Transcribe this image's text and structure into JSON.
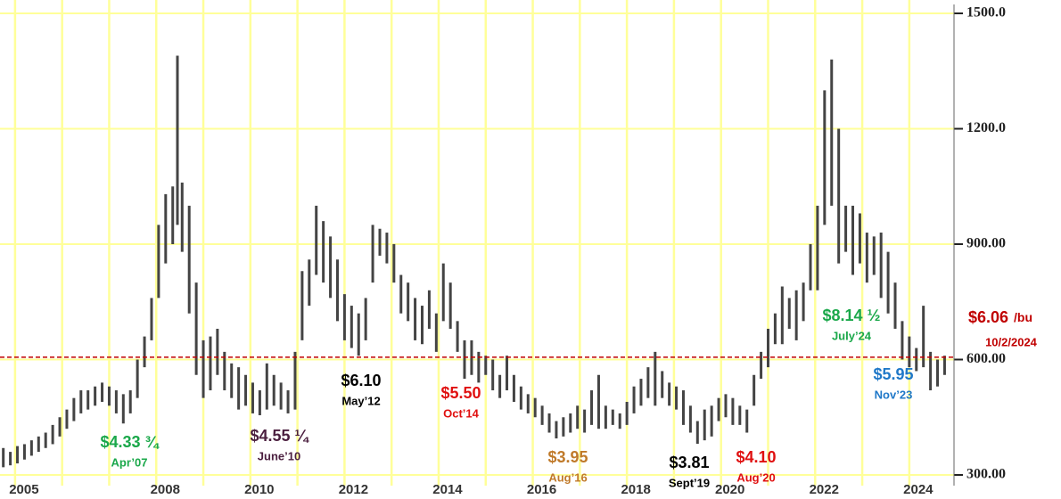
{
  "chart_data": {
    "type": "hilo",
    "color": "#444444",
    "grid_color": "#ffff99",
    "xlim": [
      2004.68,
      2024.95
    ],
    "ylim": [
      300,
      1500
    ],
    "yticks": [
      {
        "value": 300,
        "label": "300.00"
      },
      {
        "value": 600,
        "label": "600.00"
      },
      {
        "value": 900,
        "label": "900.00"
      },
      {
        "value": 1200,
        "label": "1200.0"
      },
      {
        "value": 1500,
        "label": "1500.0"
      }
    ],
    "xticks": [
      2005,
      2008,
      2010,
      2012,
      2014,
      2016,
      2018,
      2020,
      2022,
      2024
    ],
    "xgrid": [
      2005,
      2006,
      2007,
      2008,
      2009,
      2010,
      2011,
      2012,
      2013,
      2014,
      2015,
      2016,
      2017,
      2018,
      2019,
      2020,
      2021,
      2022,
      2023,
      2024
    ],
    "x": [
      2004.75,
      2004.9,
      2005.05,
      2005.2,
      2005.35,
      2005.5,
      2005.65,
      2005.8,
      2005.95,
      2006.1,
      2006.25,
      2006.4,
      2006.55,
      2006.7,
      2006.85,
      2007.0,
      2007.15,
      2007.3,
      2007.45,
      2007.6,
      2007.75,
      2007.9,
      2008.05,
      2008.2,
      2008.35,
      2008.45,
      2008.55,
      2008.7,
      2008.85,
      2009.0,
      2009.15,
      2009.3,
      2009.45,
      2009.6,
      2009.75,
      2009.9,
      2010.05,
      2010.2,
      2010.35,
      2010.5,
      2010.65,
      2010.8,
      2010.95,
      2011.1,
      2011.25,
      2011.4,
      2011.55,
      2011.7,
      2011.85,
      2012.0,
      2012.15,
      2012.3,
      2012.45,
      2012.6,
      2012.75,
      2012.9,
      2013.05,
      2013.2,
      2013.35,
      2013.5,
      2013.65,
      2013.8,
      2013.95,
      2014.1,
      2014.25,
      2014.4,
      2014.55,
      2014.7,
      2014.85,
      2015.0,
      2015.15,
      2015.3,
      2015.45,
      2015.6,
      2015.75,
      2015.9,
      2016.05,
      2016.2,
      2016.35,
      2016.5,
      2016.65,
      2016.8,
      2016.95,
      2017.1,
      2017.25,
      2017.4,
      2017.55,
      2017.7,
      2017.85,
      2018.0,
      2018.15,
      2018.3,
      2018.45,
      2018.6,
      2018.75,
      2018.9,
      2019.05,
      2019.2,
      2019.35,
      2019.5,
      2019.65,
      2019.8,
      2019.95,
      2020.1,
      2020.25,
      2020.4,
      2020.55,
      2020.7,
      2020.85,
      2021.0,
      2021.15,
      2021.3,
      2021.45,
      2021.6,
      2021.75,
      2021.9,
      2022.05,
      2022.2,
      2022.35,
      2022.5,
      2022.65,
      2022.8,
      2022.95,
      2023.1,
      2023.25,
      2023.4,
      2023.55,
      2023.7,
      2023.85,
      2024.0,
      2024.15,
      2024.3,
      2024.45,
      2024.6,
      2024.75
    ],
    "low": [
      320,
      325,
      330,
      340,
      350,
      360,
      370,
      380,
      400,
      420,
      440,
      460,
      470,
      480,
      490,
      480,
      460,
      433.75,
      460,
      500,
      580,
      650,
      760,
      850,
      900,
      950,
      880,
      720,
      560,
      500,
      520,
      560,
      520,
      500,
      470,
      480,
      460,
      455.25,
      470,
      480,
      470,
      460,
      470,
      650,
      740,
      820,
      800,
      760,
      700,
      650,
      630,
      610,
      650,
      800,
      870,
      850,
      800,
      720,
      700,
      650,
      640,
      680,
      620,
      700,
      680,
      620,
      550,
      560,
      540,
      560,
      520,
      500,
      520,
      490,
      470,
      460,
      450,
      430,
      410,
      395,
      400,
      410,
      420,
      410,
      430,
      420,
      420,
      430,
      420,
      430,
      460,
      480,
      500,
      480,
      500,
      480,
      470,
      430,
      410,
      381,
      390,
      400,
      440,
      450,
      430,
      430,
      410,
      480,
      550,
      580,
      640,
      640,
      680,
      650,
      700,
      780,
      780,
      950,
      1000,
      850,
      880,
      820,
      850,
      800,
      820,
      760,
      720,
      680,
      600,
      580,
      570,
      580,
      520,
      530,
      560
    ],
    "high": [
      370,
      360,
      375,
      380,
      390,
      400,
      410,
      430,
      450,
      470,
      500,
      520,
      520,
      530,
      540,
      530,
      520,
      510,
      520,
      600,
      660,
      760,
      950,
      1030,
      1050,
      1390,
      1060,
      1000,
      800,
      650,
      660,
      680,
      620,
      590,
      580,
      560,
      540,
      520,
      590,
      560,
      540,
      520,
      620,
      830,
      860,
      1000,
      960,
      920,
      860,
      770,
      740,
      720,
      760,
      950,
      940,
      930,
      900,
      820,
      800,
      760,
      740,
      780,
      720,
      850,
      800,
      700,
      650,
      650,
      620,
      610,
      600,
      560,
      610,
      560,
      530,
      510,
      500,
      480,
      460,
      440,
      450,
      460,
      480,
      470,
      520,
      560,
      480,
      470,
      460,
      490,
      530,
      550,
      580,
      620,
      570,
      540,
      530,
      520,
      480,
      440,
      470,
      480,
      500,
      510,
      500,
      480,
      470,
      560,
      620,
      680,
      720,
      790,
      760,
      780,
      800,
      900,
      1000,
      1300,
      1380,
      1200,
      1000,
      1000,
      980,
      930,
      920,
      930,
      880,
      800,
      700,
      660,
      630,
      740,
      620,
      600,
      610
    ],
    "reference_line": {
      "value": 606,
      "label": "$6.06",
      "unit": "/bu",
      "date": "10/2/2024",
      "color": "#c00000"
    },
    "annotations": [
      {
        "label": "$4.33 ¾",
        "date": "Apr’07",
        "color": "#1aa84a"
      },
      {
        "label": "$4.55 ¼",
        "date": "June’10",
        "color": "#4b1f3f"
      },
      {
        "label": "$6.10",
        "date": "May’12",
        "color": "#000000"
      },
      {
        "label": "$5.50",
        "date": "Oct’14",
        "color": "#e01010"
      },
      {
        "label": "$3.95",
        "date": "Aug’16",
        "color": "#c07a2a"
      },
      {
        "label": "$3.81",
        "date": "Sept’19",
        "color": "#000000"
      },
      {
        "label": "$4.10",
        "date": "Aug’20",
        "color": "#e01010"
      },
      {
        "label": "$8.14 ½",
        "date": "July’24",
        "color": "#1aa84a"
      },
      {
        "label": "$5.95",
        "date": "Nov’23",
        "color": "#1f78c8"
      }
    ]
  }
}
